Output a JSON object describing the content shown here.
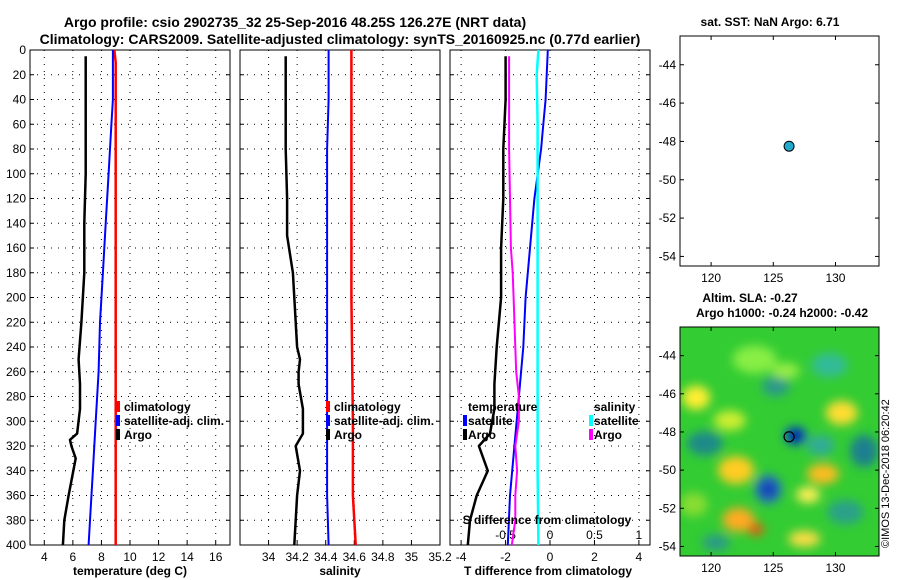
{
  "header": {
    "line1": "Argo profile: csio 2902735_32 25-Sep-2016 48.25S 126.27E (NRT data)",
    "line2": "Climatology: CARS2009. Satellite-adjusted climatology: synTS_20160925.nc (0.77d earlier)"
  },
  "colors": {
    "argo": "#000000",
    "clim": "#ff0000",
    "sat": "#0000ff",
    "sal_sat": "#00ffff",
    "sal_argo": "#ff00ff",
    "marker": "#22aacc"
  },
  "chart_data": [
    {
      "name": "temperature-panel",
      "type": "line",
      "xlabel": "temperature (deg C)",
      "ylabel": "",
      "xlim": [
        3,
        17
      ],
      "ylim": [
        400,
        0
      ],
      "xticks": [
        4,
        6,
        8,
        10,
        12,
        14,
        16
      ],
      "yticks": [
        0,
        20,
        40,
        60,
        80,
        100,
        120,
        140,
        160,
        180,
        200,
        220,
        240,
        260,
        280,
        300,
        320,
        340,
        360,
        380,
        400
      ],
      "legend": [
        "climatology",
        "satellite-adj. clim.",
        "Argo"
      ],
      "series": [
        {
          "name": "Argo",
          "depth": [
            5,
            20,
            40,
            60,
            80,
            100,
            140,
            180,
            220,
            250,
            270,
            290,
            310,
            315,
            320,
            330,
            360,
            380,
            400
          ],
          "values": [
            6.9,
            6.9,
            6.9,
            6.9,
            6.9,
            6.9,
            6.8,
            6.8,
            6.6,
            6.4,
            6.5,
            6.5,
            6.3,
            5.8,
            5.9,
            6.2,
            5.7,
            5.4,
            5.3
          ]
        },
        {
          "name": "climatology",
          "depth": [
            0,
            10,
            30,
            60,
            100,
            200,
            300,
            400
          ],
          "values": [
            8.9,
            9.0,
            9.0,
            9.0,
            9.0,
            9.0,
            9.0,
            9.0
          ]
        },
        {
          "name": "satellite-adj. clim.",
          "depth": [
            0,
            40,
            60,
            80,
            100,
            140,
            180,
            220,
            260,
            300,
            340,
            380,
            400
          ],
          "values": [
            8.8,
            8.8,
            8.7,
            8.6,
            8.5,
            8.3,
            8.1,
            7.9,
            7.8,
            7.6,
            7.4,
            7.2,
            7.1
          ]
        }
      ]
    },
    {
      "name": "salinity-panel",
      "type": "line",
      "xlabel": "salinity",
      "ylabel": "",
      "xlim": [
        33.8,
        35.2
      ],
      "ylim": [
        400,
        0
      ],
      "xticks": [
        34,
        34.2,
        34.4,
        34.6,
        34.8,
        35,
        35.2
      ],
      "legend": [
        "climatology",
        "satellite-adj. clim.",
        "Argo"
      ],
      "series": [
        {
          "name": "Argo",
          "depth": [
            5,
            40,
            80,
            120,
            150,
            165,
            180,
            200,
            220,
            240,
            250,
            260,
            270,
            290,
            310,
            320,
            340,
            360,
            380,
            400
          ],
          "values": [
            34.12,
            34.12,
            34.12,
            34.13,
            34.13,
            34.15,
            34.17,
            34.18,
            34.19,
            34.2,
            34.22,
            34.21,
            34.21,
            34.24,
            34.24,
            34.19,
            34.22,
            34.2,
            34.19,
            34.18
          ]
        },
        {
          "name": "climatology",
          "depth": [
            0,
            100,
            200,
            300,
            360,
            400
          ],
          "values": [
            34.58,
            34.58,
            34.58,
            34.59,
            34.59,
            34.61
          ]
        },
        {
          "name": "satellite-adj. clim.",
          "depth": [
            0,
            40,
            80,
            120,
            160,
            200,
            240,
            280,
            320,
            360,
            400
          ],
          "values": [
            34.42,
            34.42,
            34.41,
            34.41,
            34.41,
            34.41,
            34.41,
            34.41,
            34.41,
            34.41,
            34.42
          ]
        }
      ]
    },
    {
      "name": "difference-panel",
      "type": "line",
      "xlabel": "T difference from climatology",
      "xlabel2": "S difference from climatology",
      "xlim": [
        -4.5,
        4.5
      ],
      "ylim": [
        400,
        0
      ],
      "xticks": [
        -4,
        -2,
        0,
        2,
        4
      ],
      "xticks2": [
        "-0.5",
        "0",
        "0.5",
        "1"
      ],
      "legend_temperature_title": "temperature",
      "legend_salinity_title": "salinity",
      "legend_temperature": [
        "satellite",
        "Argo"
      ],
      "legend_salinity": [
        "satellite",
        "Argo"
      ],
      "series": [
        {
          "name": "T Argo",
          "depth": [
            5,
            40,
            80,
            120,
            160,
            200,
            240,
            270,
            290,
            310,
            320,
            340,
            360,
            380,
            400
          ],
          "values": [
            -2.0,
            -2.0,
            -2.1,
            -2.1,
            -2.2,
            -2.2,
            -2.4,
            -2.5,
            -2.5,
            -2.7,
            -3.2,
            -2.8,
            -3.3,
            -3.6,
            -3.7
          ]
        },
        {
          "name": "T satellite",
          "depth": [
            0,
            40,
            60,
            80,
            120,
            160,
            200,
            240,
            280,
            320,
            360,
            400
          ],
          "values": [
            -0.1,
            -0.2,
            -0.3,
            -0.4,
            -0.7,
            -0.9,
            -1.1,
            -1.2,
            -1.4,
            -1.6,
            -1.8,
            -1.9
          ]
        },
        {
          "name": "S satellite",
          "depth": [
            0,
            20,
            60,
            100,
            160,
            200,
            260,
            300,
            340,
            400
          ],
          "values": [
            -0.13,
            -0.15,
            -0.14,
            -0.14,
            -0.14,
            -0.14,
            -0.14,
            -0.14,
            -0.14,
            -0.13
          ]
        },
        {
          "name": "S Argo",
          "depth": [
            5,
            40,
            80,
            120,
            160,
            180,
            200,
            240,
            260,
            280,
            300,
            320,
            340,
            360,
            380,
            400
          ],
          "values": [
            -0.46,
            -0.46,
            -0.46,
            -0.45,
            -0.44,
            -0.42,
            -0.41,
            -0.39,
            -0.38,
            -0.35,
            -0.35,
            -0.39,
            -0.37,
            -0.39,
            -0.39,
            -0.43
          ]
        }
      ]
    },
    {
      "name": "sst-map",
      "type": "scatter",
      "title": "sat. SST: NaN Argo: 6.71",
      "xlim": [
        117.5,
        133.5
      ],
      "ylim": [
        -54.5,
        -42.5
      ],
      "xticks": [
        120,
        125,
        130
      ],
      "yticks": [
        -44,
        -46,
        -48,
        -50,
        -52,
        -54
      ],
      "points": [
        {
          "lon": 126.27,
          "lat": -48.25
        }
      ]
    },
    {
      "name": "sla-map",
      "type": "heatmap",
      "title1": "Altim. SLA: -0.27",
      "title2": "Argo h1000: -0.24 h2000: -0.42",
      "xlim": [
        117.5,
        133.5
      ],
      "ylim": [
        -54.5,
        -42.5
      ],
      "xticks": [
        120,
        125,
        130
      ],
      "yticks": [
        -44,
        -46,
        -48,
        -50,
        -52,
        -54
      ],
      "points": [
        {
          "lon": 126.27,
          "lat": -48.25
        }
      ]
    }
  ],
  "footer": {
    "stamp": "©IMOS 13-Dec-2018 06:20:42"
  }
}
